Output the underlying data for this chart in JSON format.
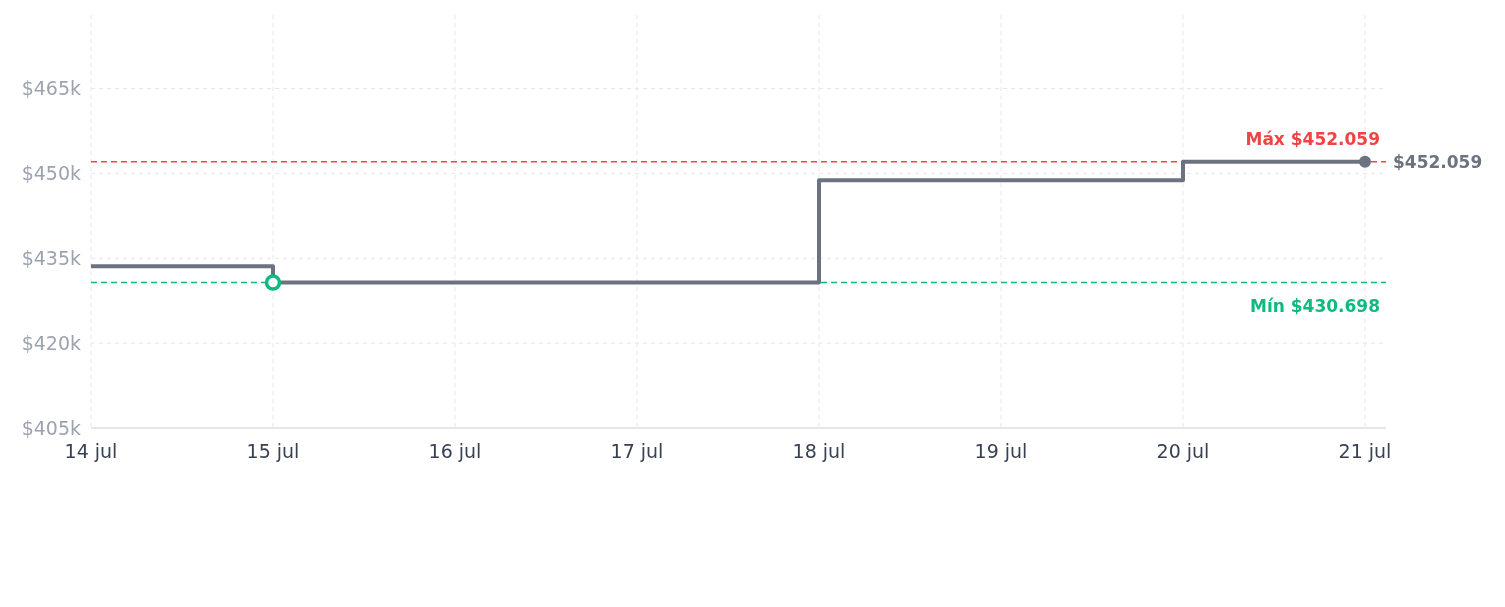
{
  "chart_data": {
    "type": "step",
    "x": [
      "--07-14",
      "--07-15",
      "--07-16",
      "--07-17",
      "--07-18",
      "--07-19",
      "--07-20",
      "--07-21"
    ],
    "series": [
      {
        "color": "#6b7280",
        "values": [
          433600,
          430698,
          430698,
          430698,
          448800,
          448800,
          452059,
          452059
        ]
      },
      {
        "type": "scatter",
        "color": "#10b981",
        "x": [
          "--07-15"
        ],
        "values": [
          430698
        ]
      }
    ],
    "xlim": [
      "--07-14",
      "--07-21"
    ],
    "xticks": [
      {
        "value": "--07-14",
        "label": "14 jul"
      },
      {
        "value": "--07-15",
        "label": "15 jul"
      },
      {
        "value": "--07-16",
        "label": "16 jul"
      },
      {
        "value": "--07-17",
        "label": "17 jul"
      },
      {
        "value": "--07-18",
        "label": "18 jul"
      },
      {
        "value": "--07-19",
        "label": "19 jul"
      },
      {
        "value": "--07-20",
        "label": "20 jul"
      },
      {
        "value": "--07-21",
        "label": "21 jul"
      }
    ],
    "ylim": [
      405000,
      478000
    ],
    "yticks": [
      {
        "value": 405000,
        "label": "$405k"
      },
      {
        "value": 420000,
        "label": "$420k"
      },
      {
        "value": 435000,
        "label": "$435k"
      },
      {
        "value": 450000,
        "label": "$450k"
      },
      {
        "value": 465000,
        "label": "$465k"
      }
    ],
    "ref_lines": [
      {
        "axis": "y",
        "value": 452059,
        "label": "Máx $452.059",
        "color": "#ef4444",
        "line_style": "dashed"
      },
      {
        "axis": "y",
        "value": 430698,
        "label": "Mín $430.698",
        "color": "#10b981",
        "line_style": "dashed"
      }
    ],
    "annotations": [
      {
        "text": "$452.059",
        "x": "--07-21",
        "y": 452059
      }
    ],
    "grid": true
  }
}
